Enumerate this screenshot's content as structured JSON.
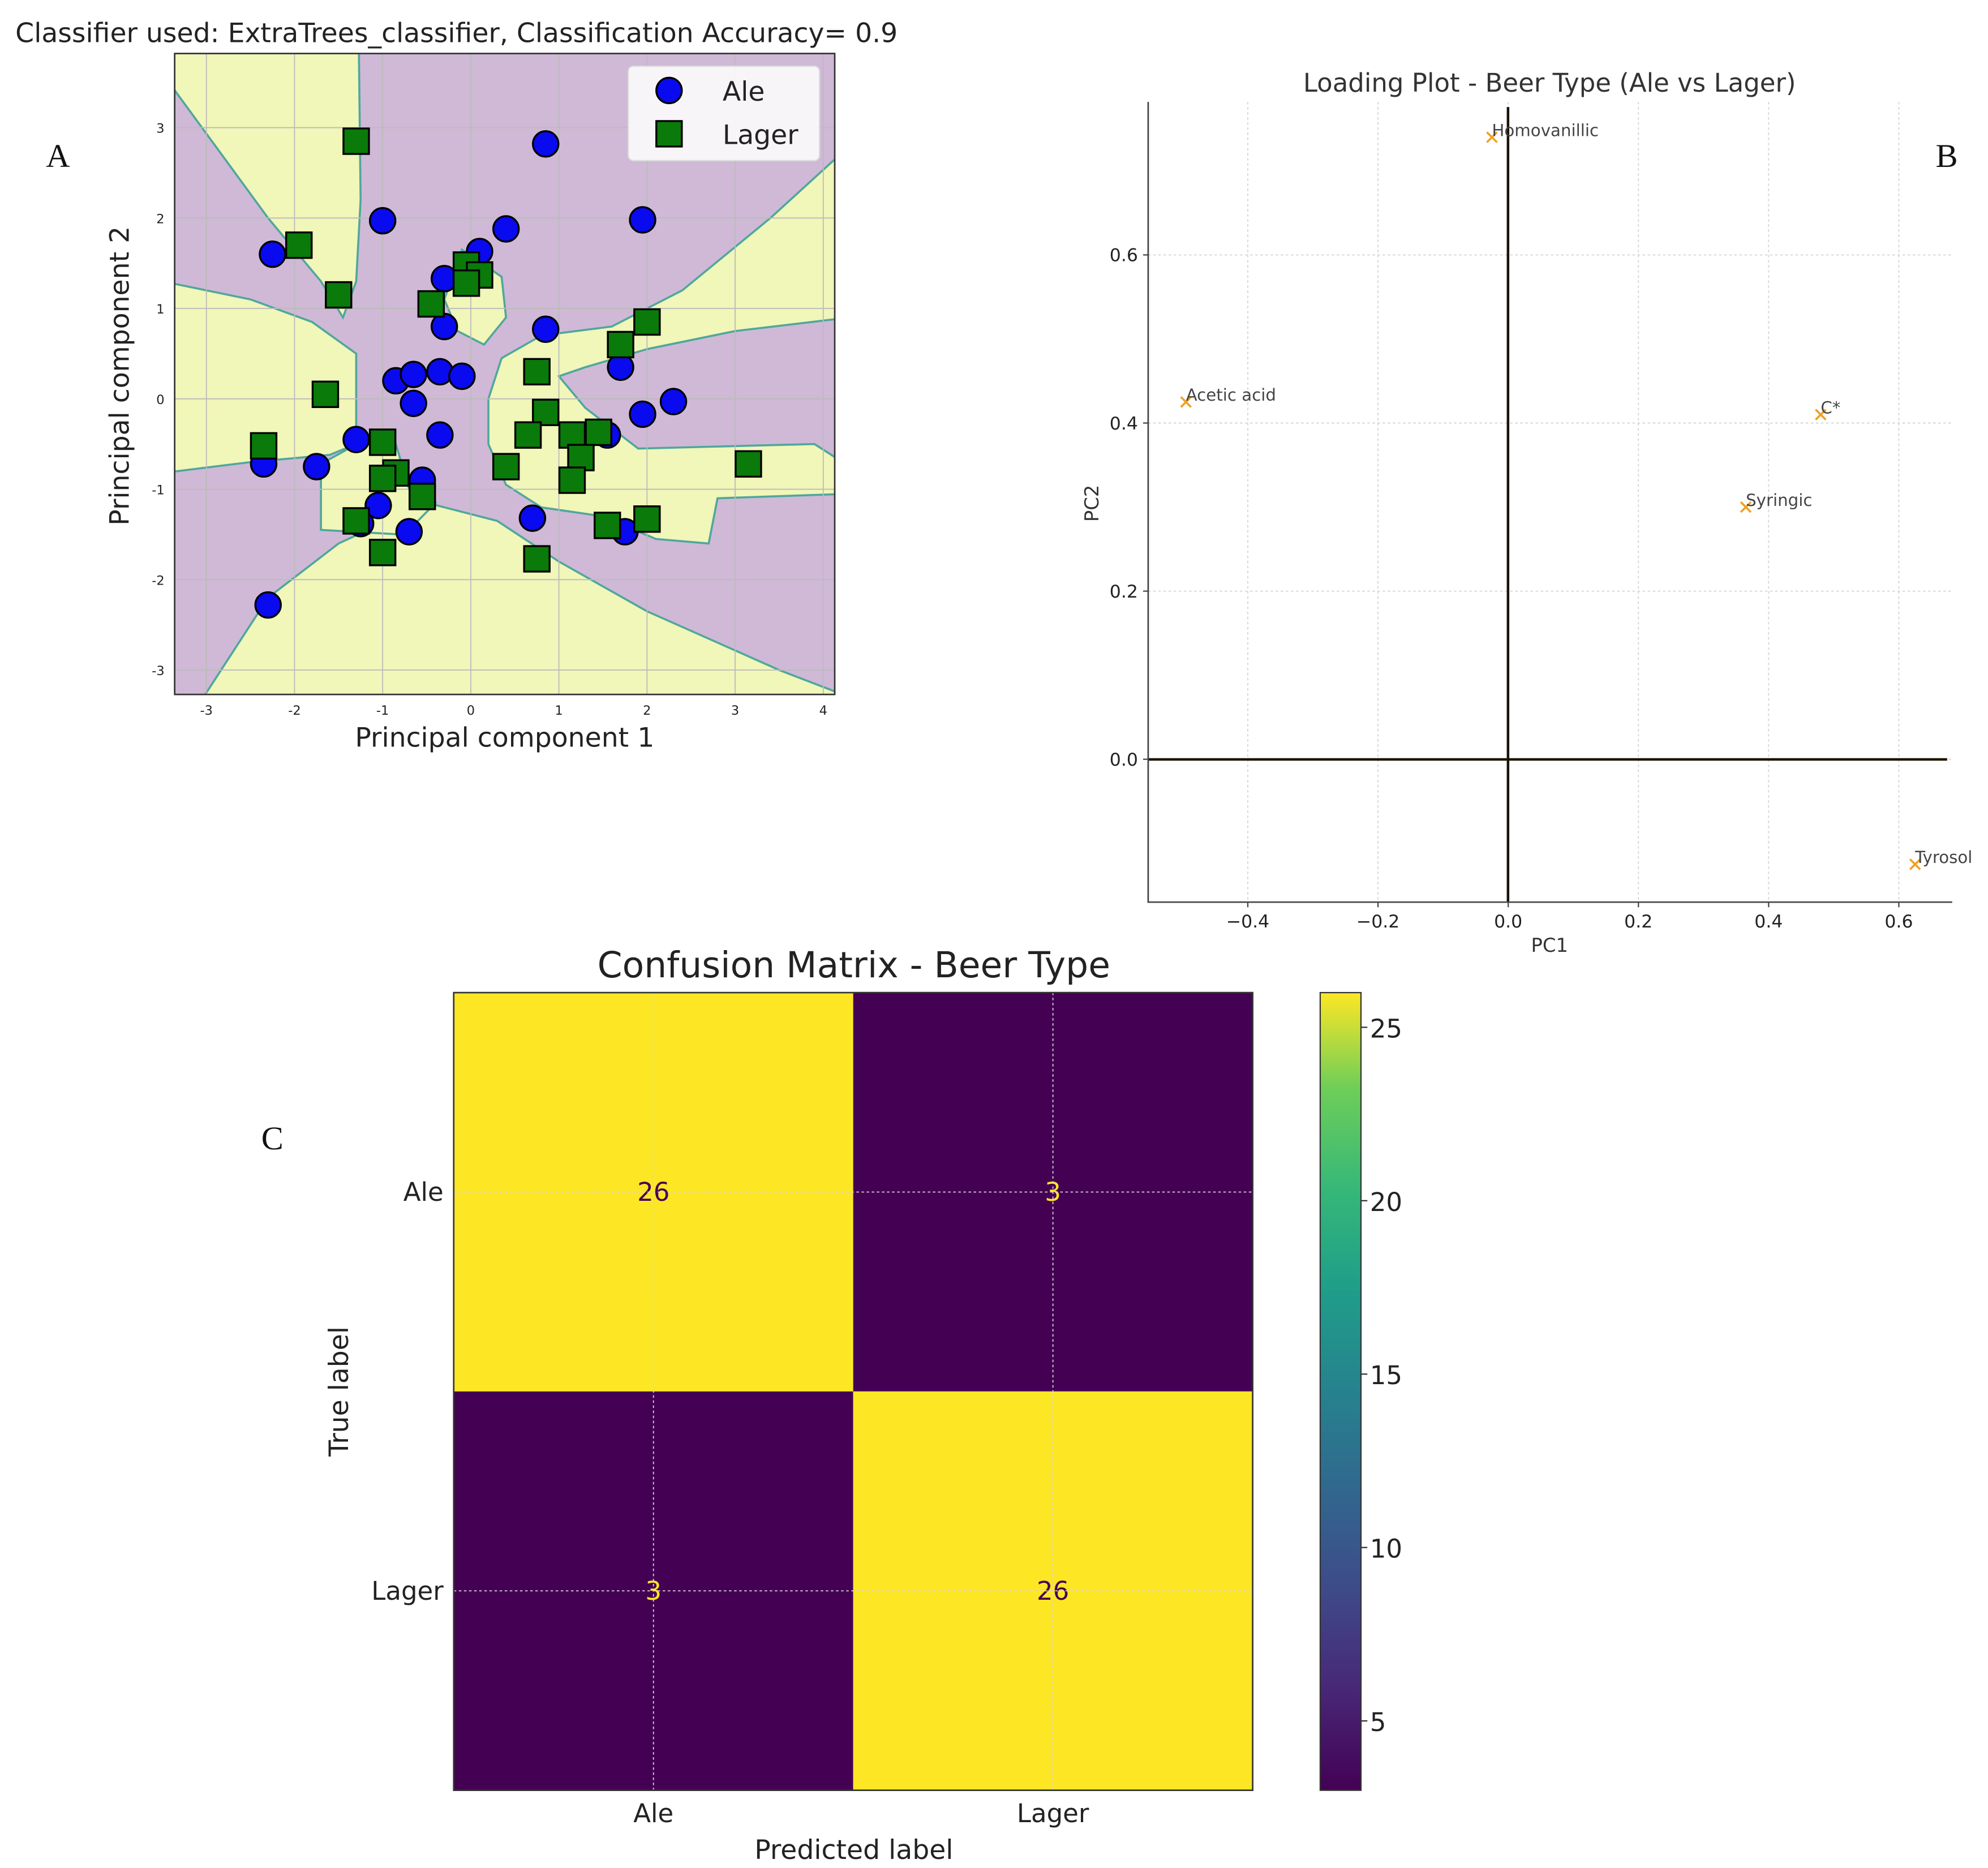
{
  "colors": {
    "region_ale": "#cfb9d6",
    "region_lager": "#f1f6b9",
    "boundary": "#4fa79c",
    "ale_marker": "#0a0af0",
    "lager_marker": "#0a7a0a",
    "loading_marker": "#f0a020",
    "viridis_low": "#440154",
    "viridis_high": "#fde725"
  },
  "panel_labels": {
    "a": "A",
    "b": "B",
    "c": "C"
  },
  "chart_data": [
    {
      "type": "scatter",
      "title": "Classifier used: ExtraTrees_classifier, Classification Accuracy= 0.9",
      "xlabel": "Principal component 1",
      "ylabel": "Principal component 2",
      "xlim": [
        -3.36,
        4.13
      ],
      "ylim": [
        -3.27,
        3.82
      ],
      "xticks": [
        -3,
        -2,
        -1,
        0,
        1,
        2,
        3,
        4
      ],
      "yticks": [
        -3,
        -2,
        -1,
        0,
        1,
        2,
        3
      ],
      "grid": true,
      "legend": {
        "position": "top-right",
        "entries": [
          "Ale",
          "Lager"
        ]
      },
      "background": "decision regions (purple = Ale, yellow = Lager)",
      "series": [
        {
          "name": "Ale",
          "marker": "circle",
          "points": [
            [
              -2.25,
              1.6
            ],
            [
              -1.0,
              1.97
            ],
            [
              0.4,
              1.88
            ],
            [
              0.1,
              1.63
            ],
            [
              -0.3,
              1.33
            ],
            [
              0.85,
              2.82
            ],
            [
              1.95,
              1.98
            ],
            [
              -0.3,
              0.8
            ],
            [
              0.85,
              0.77
            ],
            [
              -0.85,
              0.2
            ],
            [
              -0.65,
              0.27
            ],
            [
              -0.35,
              0.3
            ],
            [
              -0.1,
              0.25
            ],
            [
              -0.65,
              -0.05
            ],
            [
              1.7,
              0.35
            ],
            [
              1.95,
              -0.17
            ],
            [
              2.3,
              -0.03
            ],
            [
              -0.35,
              -0.4
            ],
            [
              -1.3,
              -0.45
            ],
            [
              -2.35,
              -0.72
            ],
            [
              -1.75,
              -0.75
            ],
            [
              1.55,
              -0.4
            ],
            [
              -0.55,
              -0.9
            ],
            [
              -1.05,
              -1.18
            ],
            [
              -0.7,
              -1.47
            ],
            [
              -1.25,
              -1.38
            ],
            [
              0.7,
              -1.32
            ],
            [
              1.75,
              -1.47
            ],
            [
              -2.3,
              -2.28
            ]
          ]
        },
        {
          "name": "Lager",
          "marker": "square",
          "points": [
            [
              -1.3,
              2.85
            ],
            [
              -1.95,
              1.7
            ],
            [
              -1.5,
              1.15
            ],
            [
              -0.05,
              1.48
            ],
            [
              0.1,
              1.37
            ],
            [
              -0.05,
              1.28
            ],
            [
              -0.45,
              1.05
            ],
            [
              -1.65,
              0.05
            ],
            [
              0.75,
              0.3
            ],
            [
              1.7,
              0.6
            ],
            [
              2.0,
              0.85
            ],
            [
              0.85,
              -0.15
            ],
            [
              0.65,
              -0.4
            ],
            [
              1.15,
              -0.4
            ],
            [
              1.45,
              -0.37
            ],
            [
              1.25,
              -0.65
            ],
            [
              -2.35,
              -0.52
            ],
            [
              -1.0,
              -0.48
            ],
            [
              -0.85,
              -0.82
            ],
            [
              -1.0,
              -0.88
            ],
            [
              -0.55,
              -1.08
            ],
            [
              0.4,
              -0.75
            ],
            [
              1.15,
              -0.9
            ],
            [
              3.15,
              -0.72
            ],
            [
              -1.3,
              -1.35
            ],
            [
              1.55,
              -1.4
            ],
            [
              2.0,
              -1.33
            ],
            [
              -1.0,
              -1.7
            ],
            [
              0.75,
              -1.77
            ]
          ]
        }
      ]
    },
    {
      "type": "scatter",
      "title": "Loading Plot - Beer Type (Ale vs Lager)",
      "xlabel": "PC1",
      "ylabel": "PC2",
      "xlim": [
        -0.553,
        0.682
      ],
      "ylim": [
        -0.17,
        0.782
      ],
      "xticks": [
        "−0.4",
        "−0.2",
        "0.0",
        "0.2",
        "0.4",
        "0.6"
      ],
      "xtick_values": [
        -0.4,
        -0.2,
        0.0,
        0.2,
        0.4,
        0.6
      ],
      "yticks": [
        "0.0",
        "0.2",
        "0.4",
        "0.6"
      ],
      "ytick_values": [
        0.0,
        0.2,
        0.4,
        0.6
      ],
      "grid": true,
      "marker": "x",
      "points": [
        {
          "label": "Homovanillic",
          "x": -0.025,
          "y": 0.74
        },
        {
          "label": "Acetic acid",
          "x": -0.495,
          "y": 0.425
        },
        {
          "label": "C*",
          "x": 0.48,
          "y": 0.41
        },
        {
          "label": "Syringic",
          "x": 0.365,
          "y": 0.3
        },
        {
          "label": "Tyrosol",
          "x": 0.625,
          "y": -0.125
        }
      ]
    },
    {
      "type": "heatmap",
      "title": "Confusion Matrix - Beer Type",
      "xlabel": "Predicted label",
      "ylabel": "True label",
      "x_categories": [
        "Ale",
        "Lager"
      ],
      "y_categories": [
        "Ale",
        "Lager"
      ],
      "values": [
        [
          26,
          3
        ],
        [
          3,
          26
        ]
      ],
      "colormap": "viridis",
      "colorbar": {
        "range": [
          3,
          26
        ],
        "ticks": [
          5,
          10,
          15,
          20,
          25
        ]
      }
    }
  ]
}
